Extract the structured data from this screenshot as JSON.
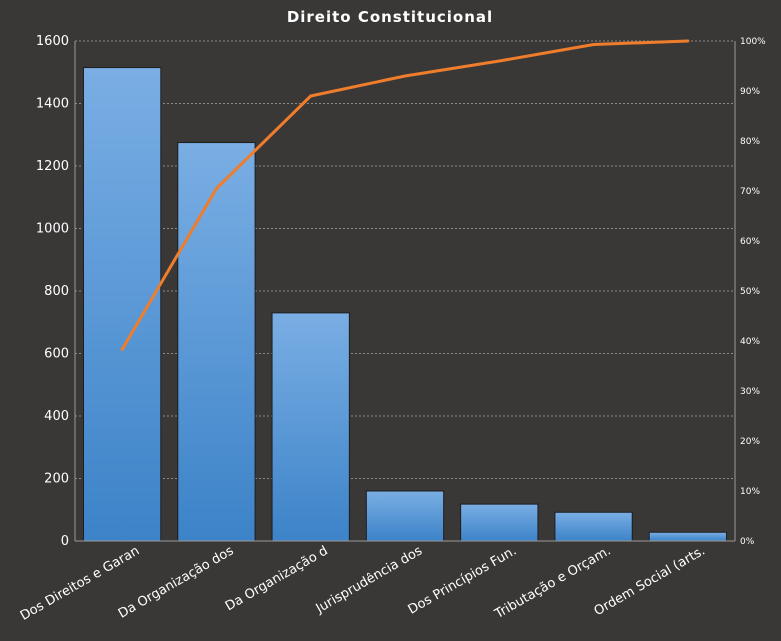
{
  "chart_data": {
    "type": "bar",
    "title": "Direito  Constitucional",
    "categories": [
      "Dos Direitos e Garan",
      "Da Organização dos",
      "Da Organização d",
      "Jurisprudência  dos",
      "Dos Princípios Fun.",
      "Tributação e Orçam.",
      "Ordem Social (arts."
    ],
    "series": [
      {
        "type": "bar",
        "values": [
          1515,
          1275,
          730,
          160,
          118,
          92,
          28
        ]
      },
      {
        "type": "line",
        "axis": "secondary",
        "values": [
          0.383,
          0.705,
          0.89,
          0.93,
          0.96,
          0.993,
          1.0
        ]
      }
    ],
    "ylim": [
      0,
      1600
    ],
    "yticks": [
      "0",
      "200",
      "400",
      "600",
      "800",
      "1000",
      "1200",
      "1400",
      "1600"
    ],
    "y2lim": [
      0,
      1
    ],
    "y2ticks": [
      "0%",
      "10%",
      "20%",
      "30%",
      "40%",
      "50%",
      "60%",
      "70%",
      "80%",
      "90%",
      "100%"
    ],
    "grid": true,
    "colors": {
      "background": "#3a3837",
      "bar_top": "#7aaee4",
      "bar_bottom": "#3c83c8",
      "line": "#ef7d2c",
      "text": "#ffffff"
    }
  }
}
